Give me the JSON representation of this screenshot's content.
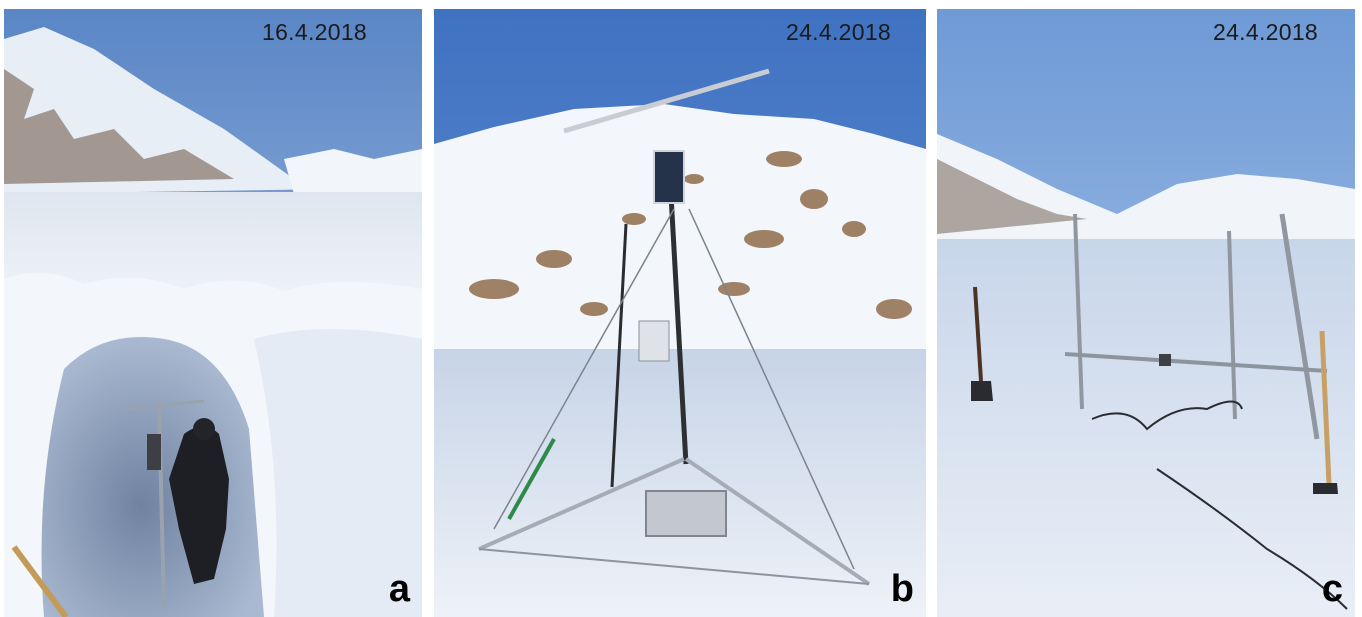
{
  "panels": [
    {
      "id": "a",
      "date": "16.4.2018",
      "letter": "a"
    },
    {
      "id": "b",
      "date": "24.4.2018",
      "letter": "b"
    },
    {
      "id": "c",
      "date": "24.4.2018",
      "letter": "c"
    }
  ],
  "colors": {
    "sky_top": "#4f7fc4",
    "sky_bottom": "#a9c4e6",
    "snow": "#eef2f8",
    "snow_shadow": "#b9c8de",
    "rock": "#7a5a3a"
  }
}
